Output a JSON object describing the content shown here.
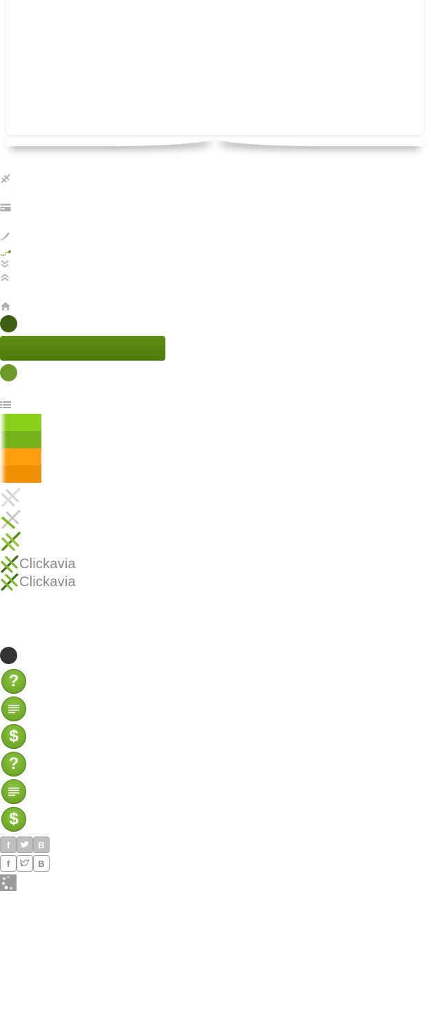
{
  "logo": {
    "text": "Clickavia"
  },
  "buttons": {
    "help": "?",
    "price": "$"
  },
  "social": {
    "facebook": "f",
    "vk": "B"
  },
  "colors": {
    "dark_green": "#3d5d12",
    "mid_green": "#5e8e12",
    "light_green": "#6c9a27",
    "swatch_1": "#86d01b",
    "swatch_2": "#73b21b",
    "swatch_3": "#ff9f10",
    "swatch_4": "#f28f00",
    "dark_circle": "#333333"
  }
}
